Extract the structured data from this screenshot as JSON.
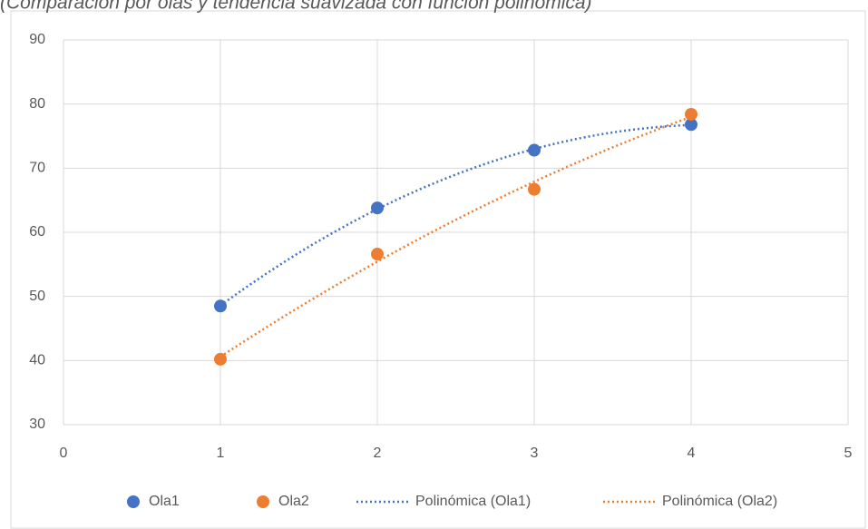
{
  "chart_data": {
    "type": "scatter",
    "subtitle": "(Comparación por olas y tendencia suavizada con función polinómica)",
    "x": [
      1,
      2,
      3,
      4
    ],
    "series": [
      {
        "name": "Ola1",
        "color": "#4472c4",
        "values": [
          48.5,
          63.8,
          72.8,
          76.8
        ],
        "trendline": {
          "name": "Polinómica (Ola1)",
          "type": "polynomial",
          "order": 2
        }
      },
      {
        "name": "Ola2",
        "color": "#ed7d31",
        "values": [
          40.2,
          56.6,
          66.7,
          78.4
        ],
        "trendline": {
          "name": "Polinómica (Ola2)",
          "type": "polynomial",
          "order": 2
        }
      }
    ],
    "xlim": [
      0,
      5
    ],
    "xticks": [
      0,
      1,
      2,
      3,
      4,
      5
    ],
    "ylim": [
      30,
      90
    ],
    "yticks": [
      30,
      40,
      50,
      60,
      70,
      80,
      90
    ],
    "grid": true,
    "legend": "bottom"
  }
}
